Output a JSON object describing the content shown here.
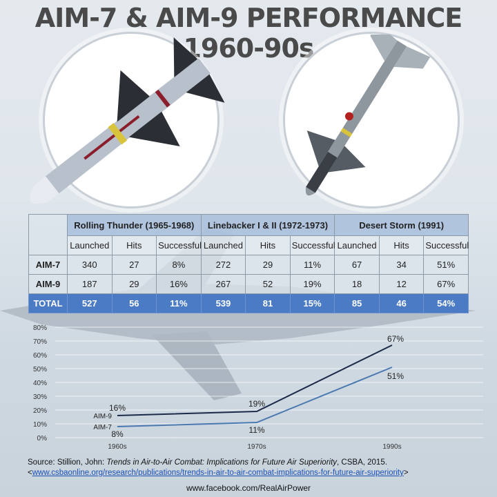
{
  "title": "AIM-7 & AIM-9 PERFORMANCE 1960-90s",
  "table": {
    "groups": [
      "Rolling Thunder (1965-1968)",
      "Linebacker I & II (1972-1973)",
      "Desert Storm (1991)"
    ],
    "subheaders": [
      "Launched",
      "Hits",
      "Successful"
    ],
    "rows": [
      {
        "name": "AIM-7",
        "values": [
          "340",
          "27",
          "8%",
          "272",
          "29",
          "11%",
          "67",
          "34",
          "51%"
        ]
      },
      {
        "name": "AIM-9",
        "values": [
          "187",
          "29",
          "16%",
          "267",
          "52",
          "19%",
          "18",
          "12",
          "67%"
        ]
      },
      {
        "name": "TOTAL",
        "values": [
          "527",
          "56",
          "11%",
          "539",
          "81",
          "15%",
          "85",
          "46",
          "54%"
        ]
      }
    ],
    "colors": {
      "group_header": "#abc1dc",
      "total_row": "#4a7bc4"
    }
  },
  "chart_data": {
    "type": "line",
    "categories": [
      "1960s",
      "1970s",
      "1990s"
    ],
    "ylim": [
      0,
      80
    ],
    "yticks": [
      "0%",
      "10%",
      "20%",
      "30%",
      "40%",
      "50%",
      "60%",
      "70%",
      "80%"
    ],
    "series": [
      {
        "name": "AIM-9",
        "values": [
          16,
          19,
          67
        ],
        "labels": [
          "16%",
          "19%",
          "67%"
        ],
        "color": "#1c2a4a"
      },
      {
        "name": "AIM-7",
        "values": [
          8,
          11,
          51
        ],
        "labels": [
          "8%",
          "11%",
          "51%"
        ],
        "color": "#4a78b0"
      }
    ]
  },
  "source": {
    "prefix": "Source: Stillion, John: ",
    "title": "Trends in Air-to-Air Combat: Implications for Future Air Superiority",
    "suffix": ", CSBA, 2015.",
    "link": "www.csbaonline.org/research/publications/trends-in-air-to-air-combat-implications-for-future-air-superiority",
    "open": "<",
    "close": ">"
  },
  "footer": "www.facebook.com/RealAirPower"
}
